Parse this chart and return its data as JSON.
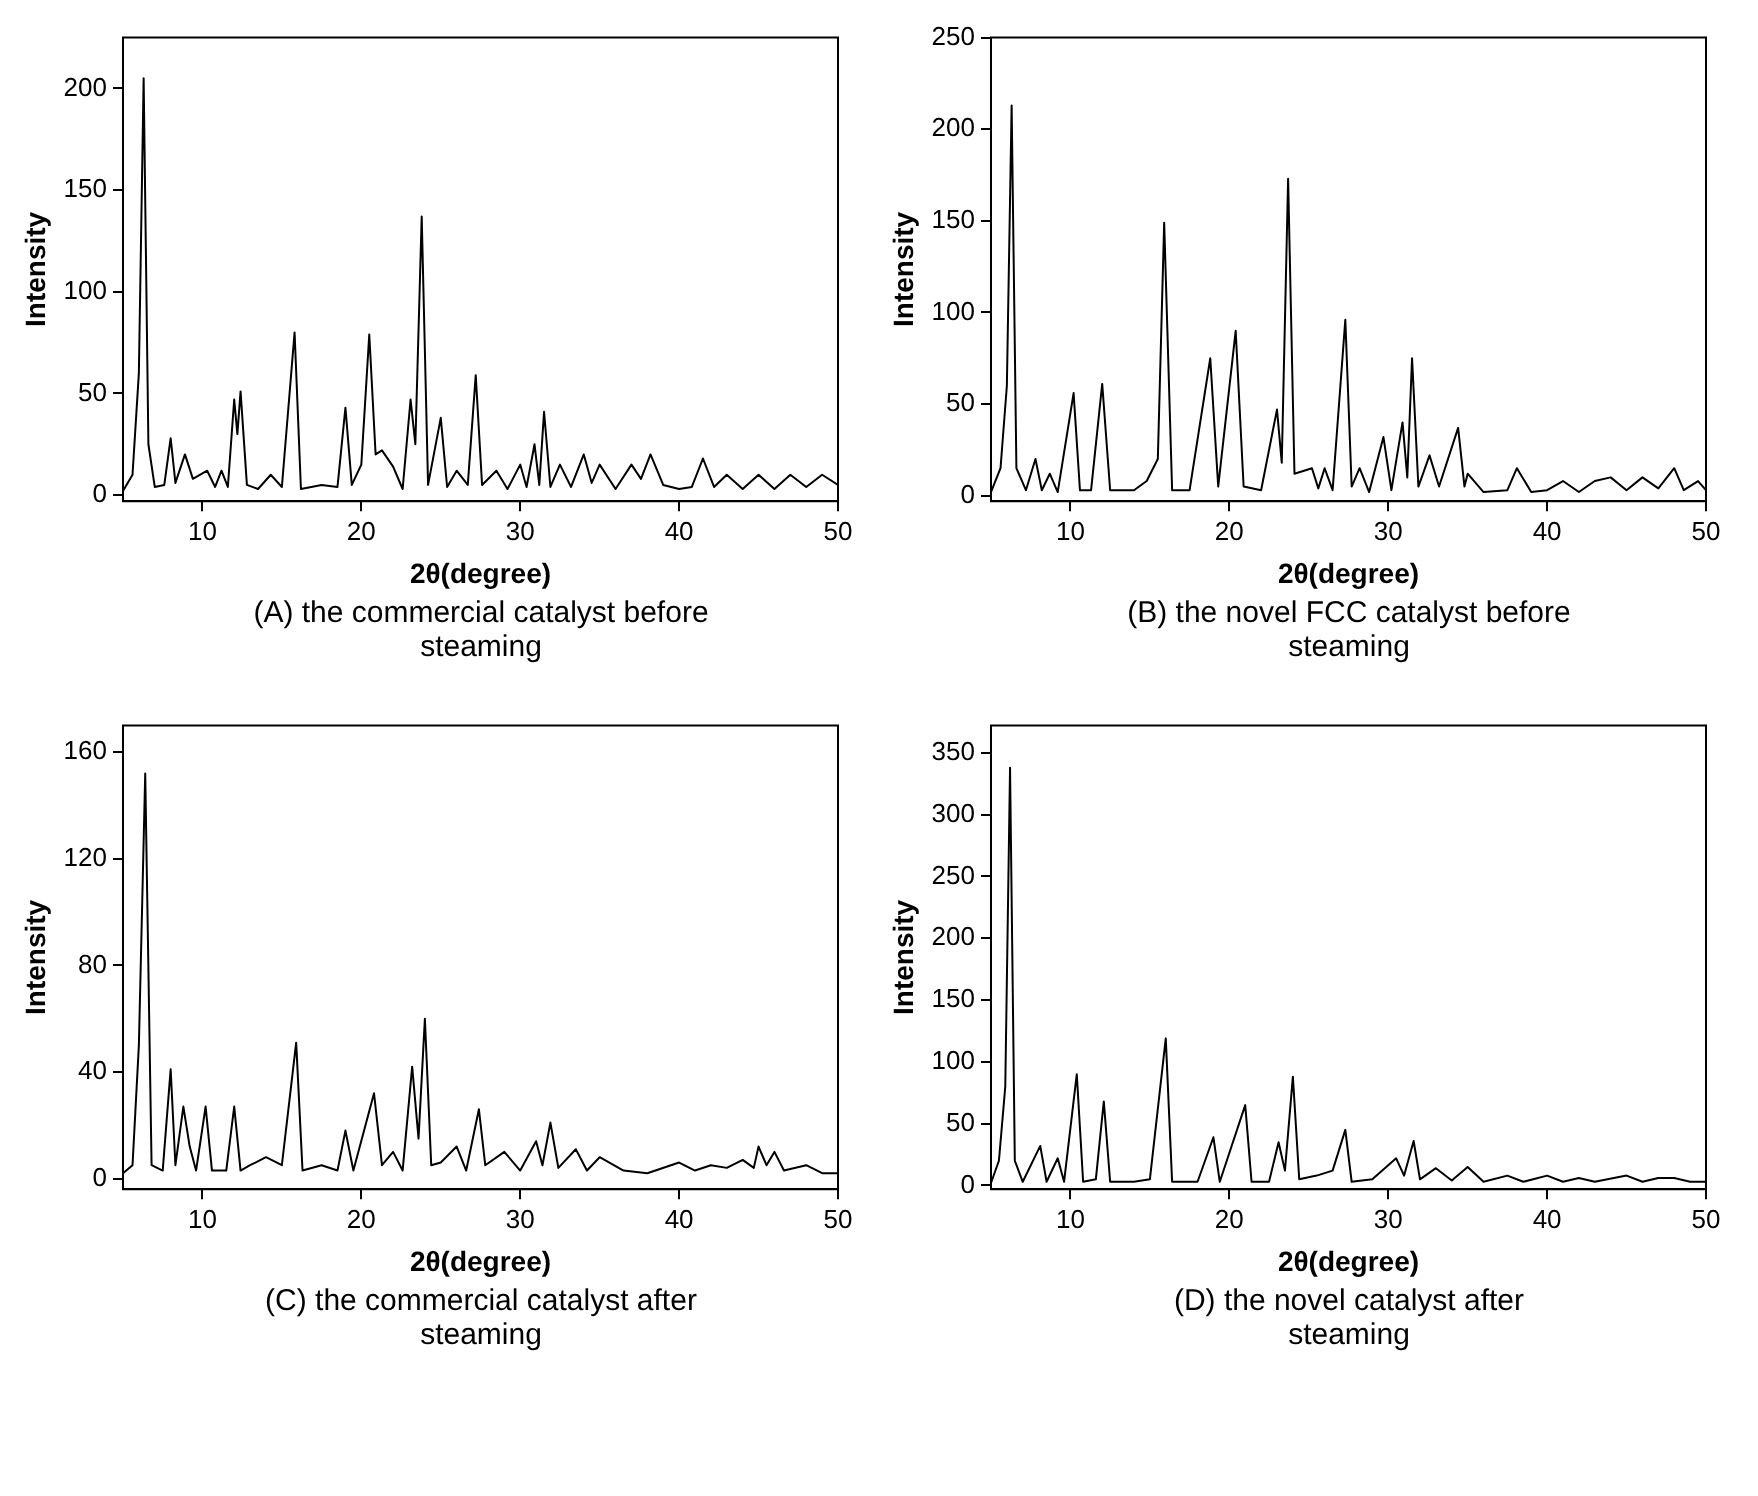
{
  "chart_data": [
    {
      "type": "line",
      "xlabel": "2θ(degree)",
      "ylabel": "Intensity",
      "annotations": [
        "(A) the commercial catalyst before steaming"
      ],
      "marker": "none",
      "xlim": [
        5,
        50
      ],
      "xticks": [
        10,
        20,
        30,
        40,
        50
      ],
      "ylim": [
        -3,
        225
      ],
      "yticks": [
        0,
        50,
        100,
        150,
        200
      ],
      "x": [
        5.0,
        5.6,
        6.0,
        6.3,
        6.6,
        7.0,
        7.6,
        8.0,
        8.3,
        8.9,
        9.4,
        10.3,
        10.8,
        11.2,
        11.6,
        12.0,
        12.2,
        12.4,
        12.8,
        13.5,
        14.3,
        15.0,
        15.8,
        16.2,
        17.5,
        18.5,
        19.0,
        19.4,
        20.0,
        20.5,
        20.9,
        21.3,
        22.0,
        22.6,
        23.1,
        23.4,
        23.8,
        24.2,
        25.0,
        25.4,
        26.0,
        26.7,
        27.2,
        27.6,
        28.5,
        29.2,
        30.0,
        30.4,
        30.9,
        31.2,
        31.5,
        31.9,
        32.5,
        33.2,
        34.0,
        34.5,
        35.0,
        36.0,
        37.0,
        37.6,
        38.2,
        39.0,
        40.0,
        40.8,
        41.5,
        42.2,
        43.0,
        44.0,
        45.0,
        46.0,
        47.0,
        48.0,
        49.0,
        50.0
      ],
      "series": [
        {
          "color": "#000000",
          "values": [
            2,
            10,
            60,
            205,
            25,
            4,
            5,
            28,
            6,
            20,
            8,
            12,
            4,
            12,
            4,
            47,
            30,
            51,
            5,
            3,
            10,
            4,
            80,
            3,
            5,
            4,
            43,
            5,
            15,
            79,
            20,
            22,
            14,
            3,
            47,
            25,
            137,
            5,
            38,
            4,
            12,
            5,
            59,
            5,
            12,
            3,
            15,
            4,
            25,
            5,
            41,
            4,
            15,
            4,
            20,
            6,
            15,
            3,
            15,
            8,
            20,
            5,
            3,
            4,
            18,
            4,
            10,
            3,
            10,
            3,
            10,
            4,
            10,
            5
          ]
        }
      ]
    },
    {
      "type": "line",
      "xlabel": "2θ(degree)",
      "ylabel": "Intensity",
      "annotations": [
        "(B) the novel FCC catalyst before steaming"
      ],
      "marker": "none",
      "xlim": [
        5,
        50
      ],
      "xticks": [
        10,
        20,
        30,
        40,
        50
      ],
      "ylim": [
        -3,
        250
      ],
      "yticks": [
        0,
        50,
        100,
        150,
        200,
        250
      ],
      "x": [
        5.0,
        5.6,
        6.0,
        6.3,
        6.6,
        7.2,
        7.8,
        8.2,
        8.7,
        9.2,
        10.2,
        10.6,
        11.3,
        12.0,
        12.5,
        14.0,
        14.8,
        15.5,
        15.9,
        16.4,
        17.5,
        18.8,
        19.3,
        20.4,
        20.9,
        22.0,
        23.0,
        23.3,
        23.7,
        24.1,
        25.2,
        25.6,
        26.0,
        26.5,
        27.3,
        27.7,
        28.2,
        28.8,
        29.7,
        30.2,
        30.9,
        31.2,
        31.5,
        31.9,
        32.6,
        33.2,
        34.4,
        34.8,
        35.0,
        36.0,
        37.5,
        38.1,
        39.0,
        40.0,
        41.0,
        42.0,
        43.0,
        44.0,
        45.0,
        46.0,
        47.0,
        48.0,
        48.6,
        49.5,
        50.0
      ],
      "series": [
        {
          "color": "#000000",
          "values": [
            2,
            15,
            60,
            213,
            15,
            3,
            20,
            3,
            12,
            2,
            56,
            3,
            3,
            61,
            3,
            3,
            8,
            20,
            149,
            3,
            3,
            75,
            5,
            90,
            5,
            3,
            47,
            18,
            173,
            12,
            15,
            4,
            15,
            3,
            96,
            5,
            15,
            2,
            32,
            3,
            40,
            10,
            75,
            5,
            22,
            5,
            37,
            5,
            12,
            2,
            3,
            15,
            2,
            3,
            8,
            2,
            8,
            10,
            3,
            10,
            4,
            15,
            3,
            8,
            3
          ]
        }
      ]
    },
    {
      "type": "line",
      "xlabel": "2θ(degree)",
      "ylabel": "Intensity",
      "annotations": [
        "(C) the commercial catalyst after steaming"
      ],
      "marker": "none",
      "xlim": [
        5,
        50
      ],
      "xticks": [
        10,
        20,
        30,
        40,
        50
      ],
      "ylim": [
        -4,
        170
      ],
      "yticks": [
        0,
        40,
        80,
        120,
        160
      ],
      "x": [
        5.0,
        5.6,
        6.0,
        6.4,
        6.8,
        7.5,
        8.0,
        8.3,
        8.8,
        9.2,
        9.6,
        10.2,
        10.6,
        11.5,
        12.0,
        12.4,
        13.0,
        14.0,
        15.0,
        15.9,
        16.3,
        17.5,
        18.5,
        19.0,
        19.5,
        20.8,
        21.3,
        22.0,
        22.6,
        23.2,
        23.6,
        24.0,
        24.4,
        25.0,
        26.0,
        26.6,
        27.4,
        27.8,
        29.0,
        30.0,
        31.0,
        31.4,
        31.9,
        32.4,
        33.5,
        34.2,
        35.0,
        36.5,
        38.0,
        40.0,
        41.0,
        42.0,
        43.0,
        44.0,
        44.7,
        45.0,
        45.5,
        46.0,
        46.6,
        48.0,
        49.0,
        50.0
      ],
      "series": [
        {
          "color": "#000000",
          "values": [
            2,
            5,
            50,
            152,
            5,
            3,
            41,
            5,
            27,
            12,
            3,
            27,
            3,
            3,
            27,
            3,
            5,
            8,
            5,
            51,
            3,
            5,
            3,
            18,
            3,
            32,
            5,
            10,
            3,
            42,
            15,
            60,
            5,
            6,
            12,
            3,
            26,
            5,
            10,
            3,
            14,
            5,
            21,
            4,
            11,
            3,
            8,
            3,
            2,
            6,
            3,
            5,
            4,
            7,
            4,
            12,
            5,
            10,
            3,
            5,
            2,
            2
          ]
        }
      ]
    },
    {
      "type": "line",
      "xlabel": "2θ(degree)",
      "ylabel": "Intensity",
      "annotations": [
        "(D) the novel catalyst after steaming"
      ],
      "marker": "none",
      "xlim": [
        5,
        50
      ],
      "xticks": [
        10,
        20,
        30,
        40,
        50
      ],
      "ylim": [
        -3,
        372
      ],
      "yticks": [
        0,
        50,
        100,
        150,
        200,
        250,
        300,
        350
      ],
      "x": [
        5.0,
        5.5,
        5.9,
        6.2,
        6.5,
        7.0,
        8.1,
        8.5,
        9.2,
        9.6,
        10.4,
        10.8,
        11.6,
        12.1,
        12.5,
        14.0,
        15.0,
        16.0,
        16.4,
        18.0,
        19.0,
        19.4,
        21.0,
        21.4,
        22.5,
        23.1,
        23.5,
        24.0,
        24.4,
        25.5,
        26.5,
        27.3,
        27.7,
        29.0,
        30.5,
        31.0,
        31.6,
        32.0,
        33.0,
        34.0,
        35.0,
        36.0,
        37.5,
        38.5,
        40.0,
        41.0,
        42.0,
        43.0,
        45.0,
        46.0,
        47.0,
        48.0,
        49.0,
        50.0
      ],
      "series": [
        {
          "color": "#000000",
          "values": [
            2,
            20,
            80,
            338,
            20,
            3,
            32,
            3,
            22,
            3,
            90,
            3,
            5,
            68,
            3,
            3,
            5,
            119,
            3,
            3,
            39,
            3,
            65,
            3,
            3,
            35,
            12,
            88,
            5,
            8,
            12,
            45,
            3,
            5,
            22,
            8,
            36,
            5,
            14,
            4,
            15,
            3,
            8,
            3,
            8,
            3,
            6,
            3,
            8,
            3,
            6,
            6,
            3,
            3
          ]
        }
      ]
    }
  ]
}
